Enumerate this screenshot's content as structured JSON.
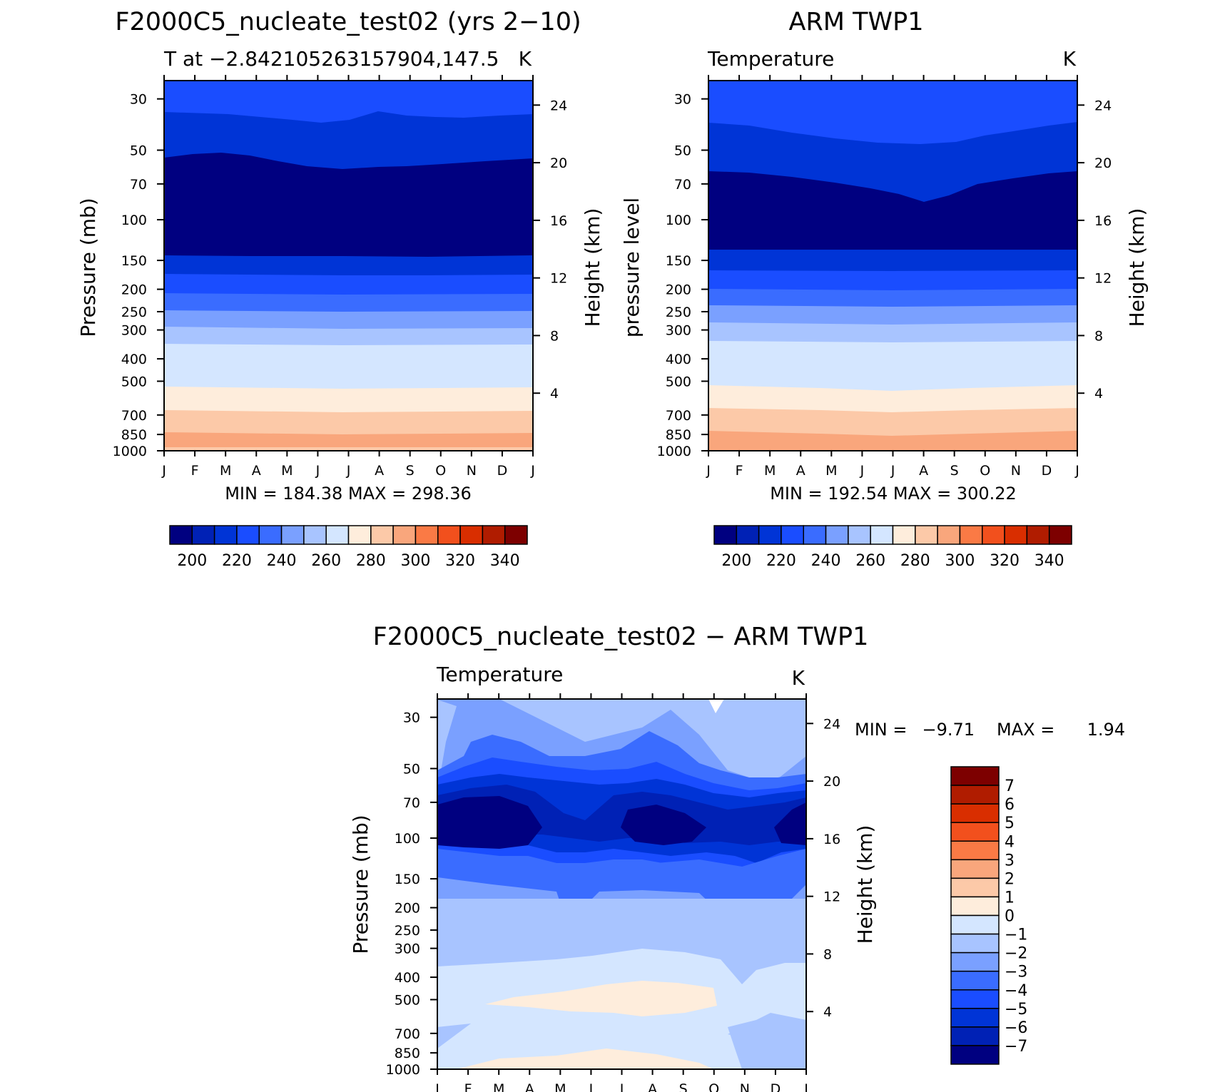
{
  "palettes": {
    "temp": [
      "#000080",
      "#0021b5",
      "#0034d6",
      "#1a4dff",
      "#3a6cff",
      "#7aa0ff",
      "#a8c4ff",
      "#d4e6ff",
      "#feeddc",
      "#fcc9a8",
      "#f9a67c",
      "#fa7a45",
      "#f2501d",
      "#d92e00",
      "#b01c00",
      "#7d0000"
    ],
    "diff": [
      "#000080",
      "#0021b5",
      "#0034d6",
      "#1a4dff",
      "#3a6cff",
      "#7aa0ff",
      "#a8c4ff",
      "#d4e6ff",
      "#feeddc",
      "#fcc9a8",
      "#f9a67c",
      "#fa7a45",
      "#f2501d",
      "#d92e00",
      "#b01c00",
      "#7d0000"
    ]
  },
  "chart_data": [
    {
      "type": "heatmap",
      "title": "F2000C5_nucleate_test02 (yrs 2−10)",
      "subtitle_left": "T at −2.842105263157904,147.5",
      "subtitle_right": "K",
      "ylabel": "Pressure (mb)",
      "ylabel_right": "Height (km)",
      "stats": "MIN = 184.38 MAX = 298.36",
      "x_ticks": [
        "J",
        "F",
        "M",
        "A",
        "M",
        "J",
        "J",
        "A",
        "S",
        "O",
        "N",
        "D",
        "J"
      ],
      "y_ticks": [
        "30",
        "50",
        "70",
        "100",
        "150",
        "200",
        "250",
        "300",
        "400",
        "500",
        "700",
        "850",
        "1000"
      ],
      "y_ticks_right": [
        "24",
        "20",
        "16",
        "12",
        "8",
        "4"
      ],
      "colorbar_labels": [
        "200",
        "220",
        "240",
        "260",
        "280",
        "300",
        "320",
        "340"
      ],
      "levels": [
        190,
        200,
        210,
        220,
        230,
        240,
        250,
        260,
        270,
        280,
        290,
        300,
        310,
        320,
        330,
        340
      ],
      "ylim": [
        1000,
        25
      ]
    },
    {
      "type": "heatmap",
      "title": "ARM TWP1",
      "subtitle_left": "Temperature",
      "subtitle_right": "K",
      "ylabel": "pressure level",
      "ylabel_right": "Height (km)",
      "stats": "MIN = 192.54 MAX = 300.22",
      "x_ticks": [
        "J",
        "F",
        "M",
        "A",
        "M",
        "J",
        "J",
        "A",
        "S",
        "O",
        "N",
        "D",
        "J"
      ],
      "y_ticks": [
        "30",
        "50",
        "70",
        "100",
        "150",
        "200",
        "250",
        "300",
        "400",
        "500",
        "700",
        "850",
        "1000"
      ],
      "y_ticks_right": [
        "24",
        "20",
        "16",
        "12",
        "8",
        "4"
      ],
      "colorbar_labels": [
        "200",
        "220",
        "240",
        "260",
        "280",
        "300",
        "320",
        "340"
      ],
      "levels": [
        190,
        200,
        210,
        220,
        230,
        240,
        250,
        260,
        270,
        280,
        290,
        300,
        310,
        320,
        330,
        340
      ],
      "ylim": [
        1000,
        25
      ]
    },
    {
      "type": "heatmap",
      "title": "F2000C5_nucleate_test02 − ARM TWP1",
      "subtitle_left": "Temperature",
      "subtitle_right": "K",
      "ylabel": "Pressure (mb)",
      "ylabel_right": "Height (km)",
      "stats_min_label": "MIN =",
      "stats_min": "−9.71",
      "stats_max_label": "MAX =",
      "stats_max": "1.94",
      "x_ticks": [
        "J",
        "F",
        "M",
        "A",
        "M",
        "J",
        "J",
        "A",
        "S",
        "O",
        "N",
        "D",
        "J"
      ],
      "y_ticks": [
        "30",
        "50",
        "70",
        "100",
        "150",
        "200",
        "250",
        "300",
        "400",
        "500",
        "700",
        "850",
        "1000"
      ],
      "y_ticks_right": [
        "24",
        "20",
        "16",
        "12",
        "8",
        "4"
      ],
      "colorbar_labels": [
        "7",
        "6",
        "5",
        "4",
        "3",
        "2",
        "1",
        "0",
        "−1",
        "−2",
        "−3",
        "−4",
        "−5",
        "−6",
        "−7"
      ],
      "levels": [
        -7,
        -6,
        -5,
        -4,
        -3,
        -2,
        -1,
        0,
        1,
        2,
        3,
        4,
        5,
        6,
        7
      ],
      "ylim": [
        1000,
        25
      ]
    }
  ]
}
